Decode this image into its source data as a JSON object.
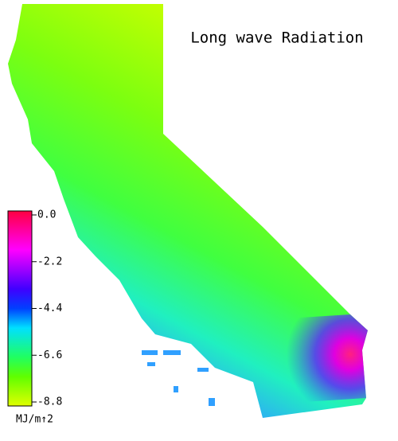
{
  "title": "Long wave Radiation",
  "colorbar": {
    "lim": [
      -8.8,
      0
    ],
    "ticks": [
      {
        "value": 0,
        "label": "0.0"
      },
      -2.2,
      -4.4,
      -6.6,
      -8.8
    ],
    "unit": "MJ/m↑2"
  }
}
